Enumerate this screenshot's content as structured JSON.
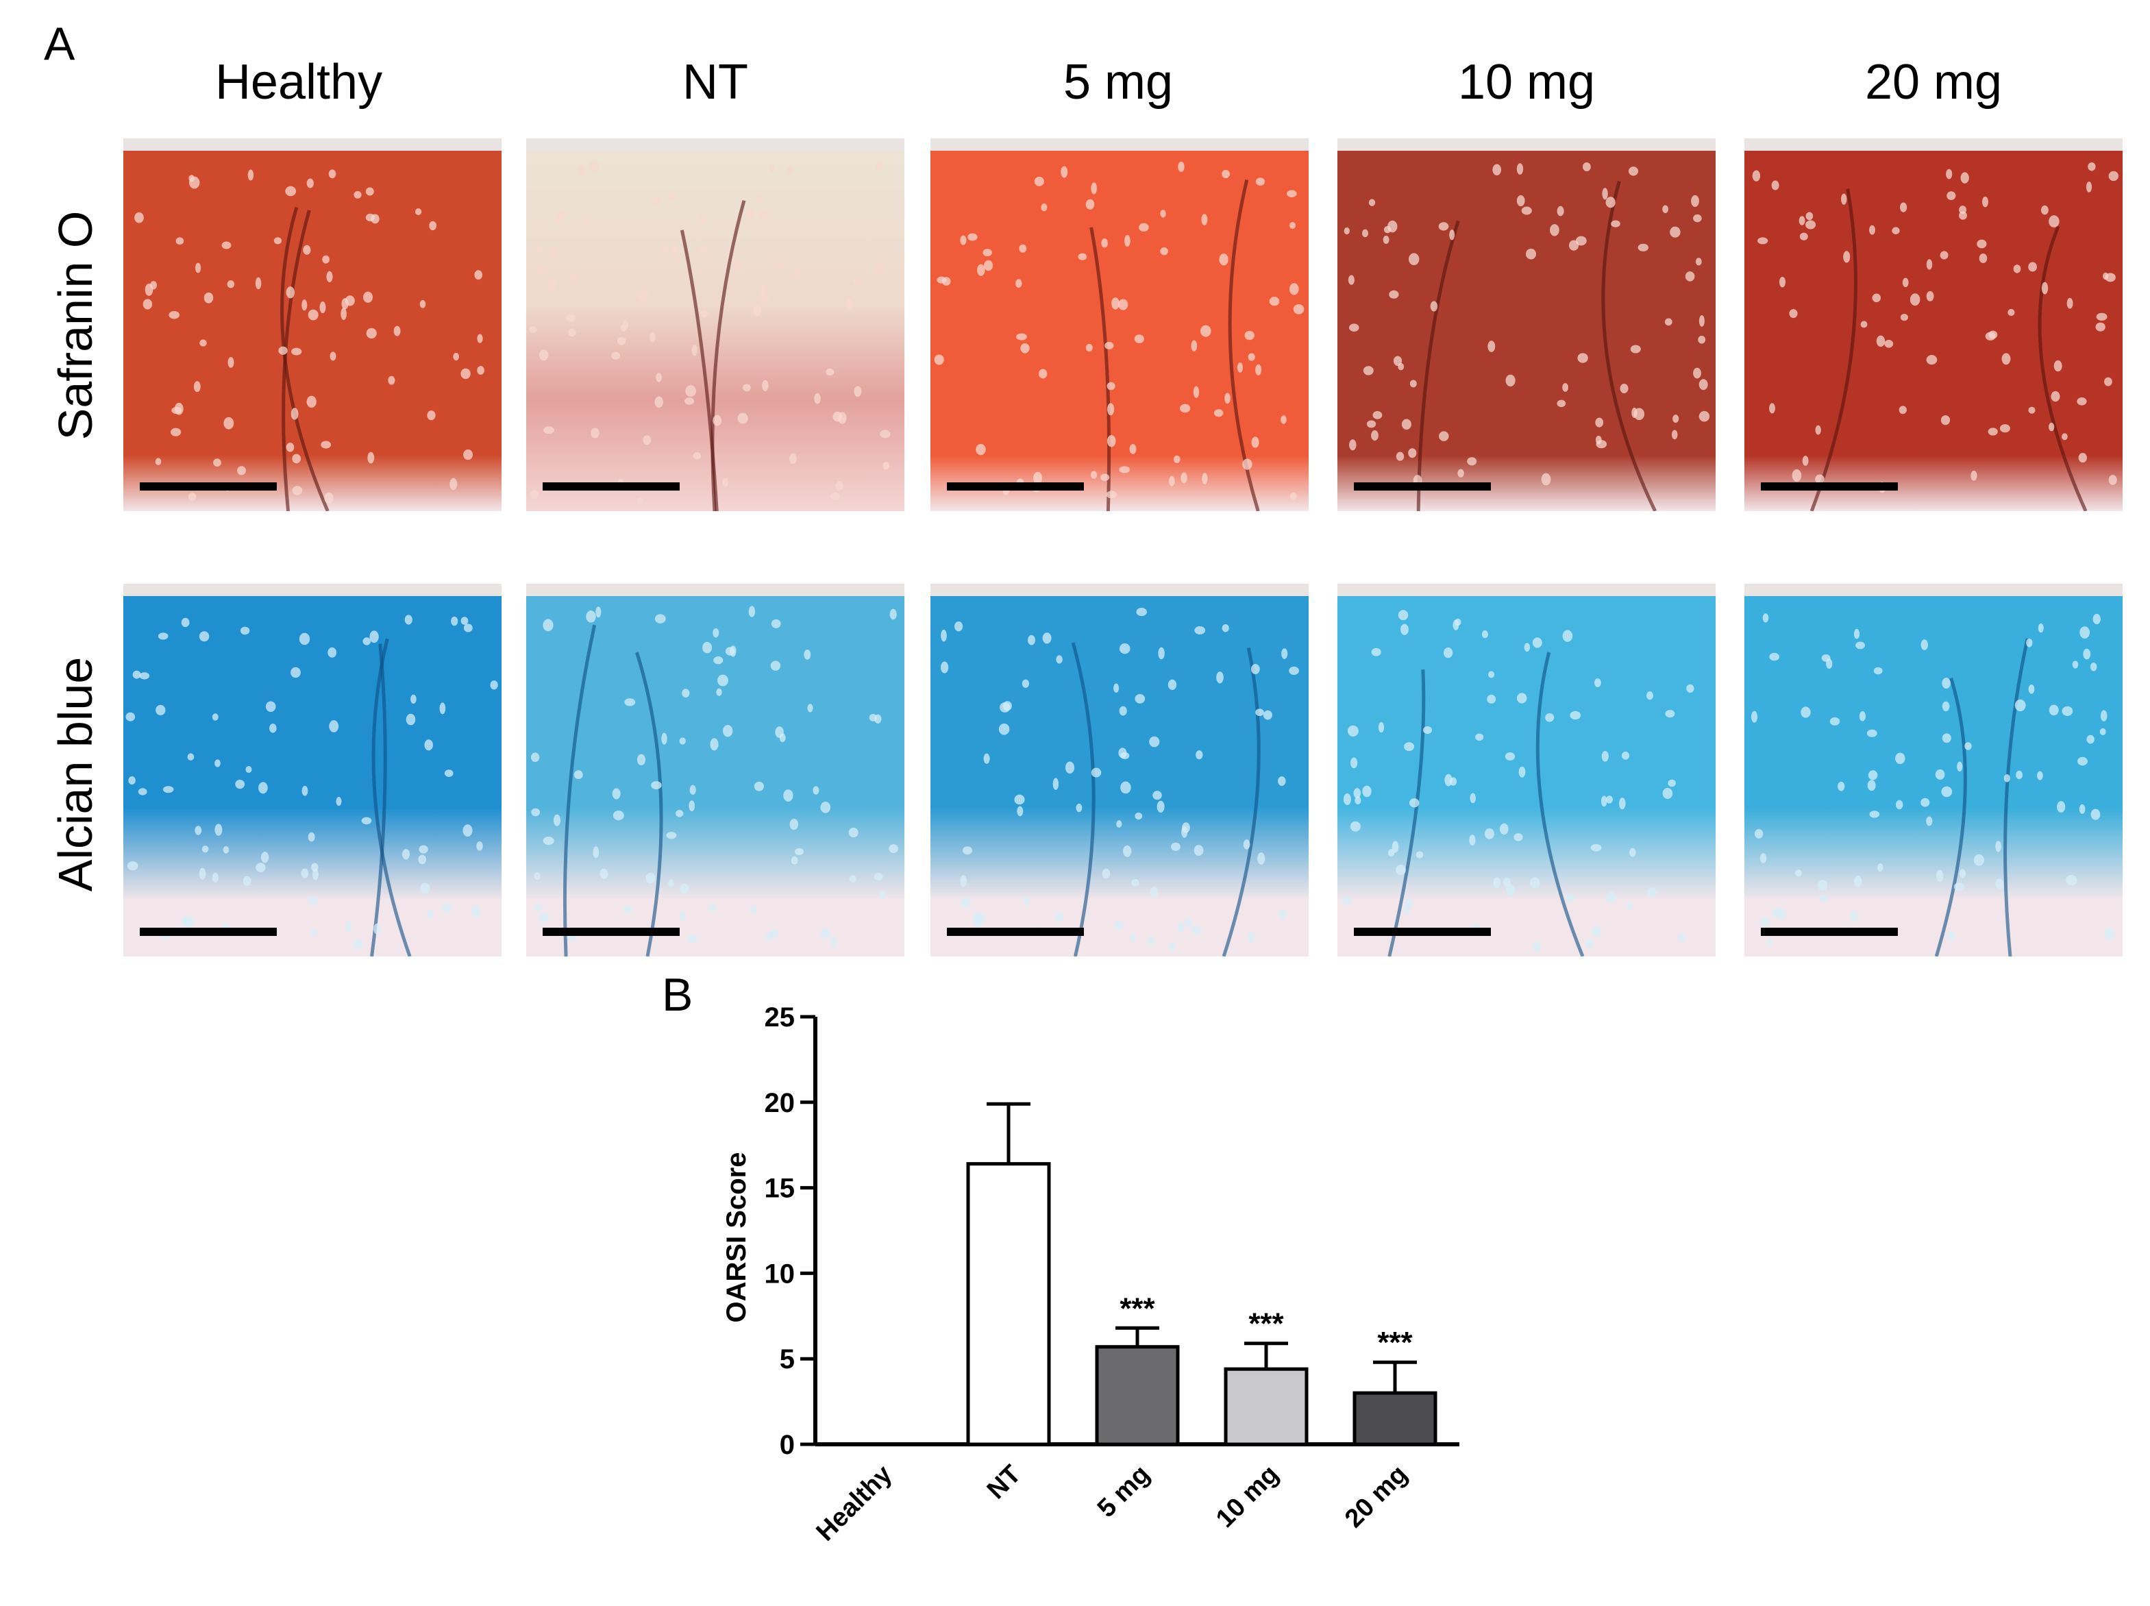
{
  "figure": {
    "panel_a_letter": "A",
    "panel_b_letter": "B",
    "columns": [
      "Healthy",
      "NT",
      "5 mg",
      "10 mg",
      "20 mg"
    ],
    "rows": [
      "Safranin O",
      "Alcian blue"
    ],
    "stain_colors": {
      "safranin": [
        "#cf4a2c",
        "#e3a19c",
        "#f05b3a",
        "#a93c2c",
        "#b53425"
      ],
      "alcian": [
        "#1f8fd0",
        "#52b3dc",
        "#2c9bd4",
        "#45b6e2",
        "#3aaedc"
      ],
      "matrix_pale": "#f3e6ea"
    },
    "scale_bar_color": "#000000"
  },
  "chart_data": {
    "type": "bar",
    "categories": [
      "Healthy",
      "NT",
      "5 mg",
      "10 mg",
      "20 mg"
    ],
    "values": [
      0,
      16.4,
      5.7,
      4.4,
      3.0
    ],
    "errors": [
      0,
      3.5,
      1.1,
      1.5,
      1.8
    ],
    "bar_colors": [
      "#ffffff",
      "#ffffff",
      "#6b6b6d",
      "#c9c9cb",
      "#4d4d4f"
    ],
    "significance": [
      "",
      "",
      "***",
      "***",
      "***"
    ],
    "ylabel": "OARSI Score",
    "ylim": [
      0,
      25
    ],
    "yticks": [
      0,
      5,
      10,
      15,
      20,
      25
    ]
  }
}
